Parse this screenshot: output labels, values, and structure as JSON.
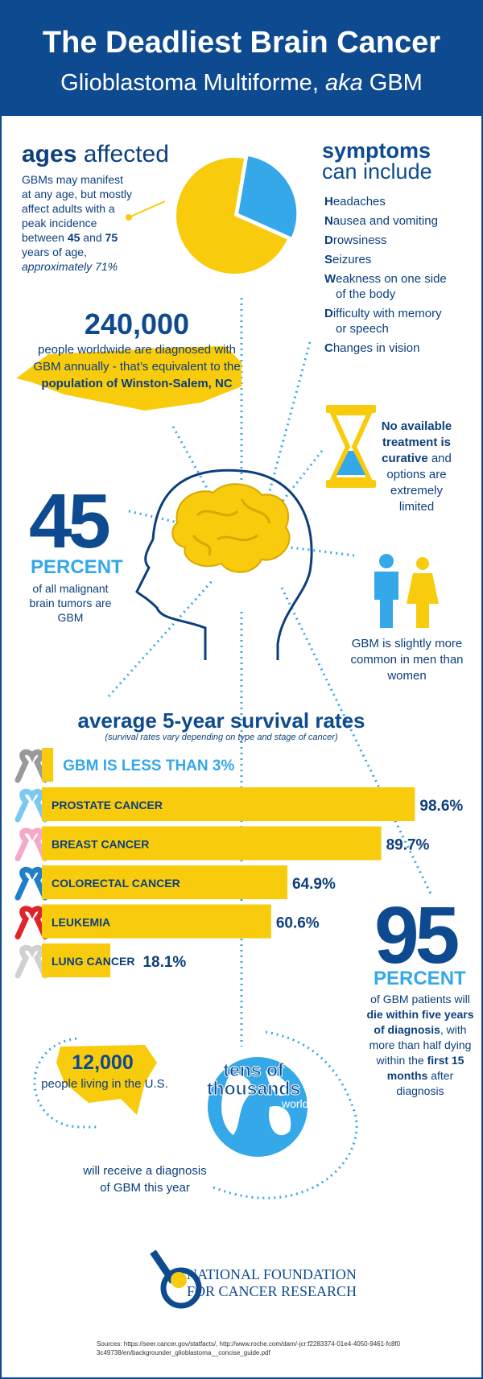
{
  "header": {
    "title": "The Deadliest Brain Cancer",
    "subtitle": "Glioblastoma Multiforme, ",
    "subtitle_italic": "aka",
    "subtitle_end": " GBM"
  },
  "ages": {
    "heading_bold": "ages",
    "heading_light": " affected",
    "text": "GBMs may manifest at any age, but mostly affect adults with a peak incidence between ",
    "age_low": "45",
    "and": " and ",
    "age_high": "75",
    "text_end": " years of age, ",
    "approx": "approximately ",
    "pie": {
      "values": [
        71
      ],
      "value_labels": [
        "71%"
      ],
      "color": "#f9cb0d",
      "rest_color": "#35a8e9"
    }
  },
  "symptoms": {
    "heading": "symptoms",
    "subheading": "can include",
    "items": [
      "Headaches",
      "Nausea and vomiting",
      "Drowsiness",
      "Seizures",
      "Weakness on one side of the body",
      "Difficulty with memory or speech",
      "Changes in vision"
    ]
  },
  "worldwide": {
    "number": "240,000",
    "text": "people worldwide are diagnosed with GBM annually - that’s equivalent to the",
    "bold": "population of Winston-Salem, NC"
  },
  "treatment": {
    "bold": "No available treatment is curative",
    "text": " and options are extremely limited"
  },
  "share": {
    "number": "45",
    "unit": "PERCENT",
    "text": "of all malignant brain tumors are GBM"
  },
  "gender": {
    "text": "GBM is slightly more common in men than women"
  },
  "survival": {
    "title": "average 5-year survival rates",
    "note": "(survival rates vary depending on type and stage of cancer)",
    "gbm": {
      "label": "GBM IS LESS THAN 3%",
      "value": 3
    },
    "categories": [
      "PROSTATE CANCER",
      "BREAST CANCER",
      "COLORECTAL CANCER",
      "LEUKEMIA",
      "LUNG CANCER"
    ],
    "values": [
      98.6,
      89.7,
      64.9,
      60.6,
      18.1
    ],
    "value_labels": [
      "98.6%",
      "89.7%",
      "64.9%",
      "60.6%",
      "18.1%"
    ],
    "color": "#f9cb0d"
  },
  "mortality": {
    "number": "95",
    "unit": "PERCENT",
    "t1": "of GBM patients will ",
    "b1": "die within five years of diagnosis",
    "t2": ", with more than half dying within the ",
    "b2": "first 15 months",
    "t3": " after diagnosis"
  },
  "diagnoses": {
    "us_number": "12,000",
    "us_text": "people living in the U.S.",
    "world_number": "tens of thousands",
    "world_text": "worldwide",
    "footer": "will receive a diagnosis of GBM this year"
  },
  "logo": {
    "line1": "NATIONAL FOUNDATION",
    "line2": "FOR CANCER RESEARCH"
  },
  "sources": "Sources: https://seer.cancer.gov/statfacts/, http://www.roche.com/dam/-jcr:f2283374-01e4-4050-9461-fc8f03c49738/en/backgrounder_glioblastoma__concise_guide.pdf"
}
